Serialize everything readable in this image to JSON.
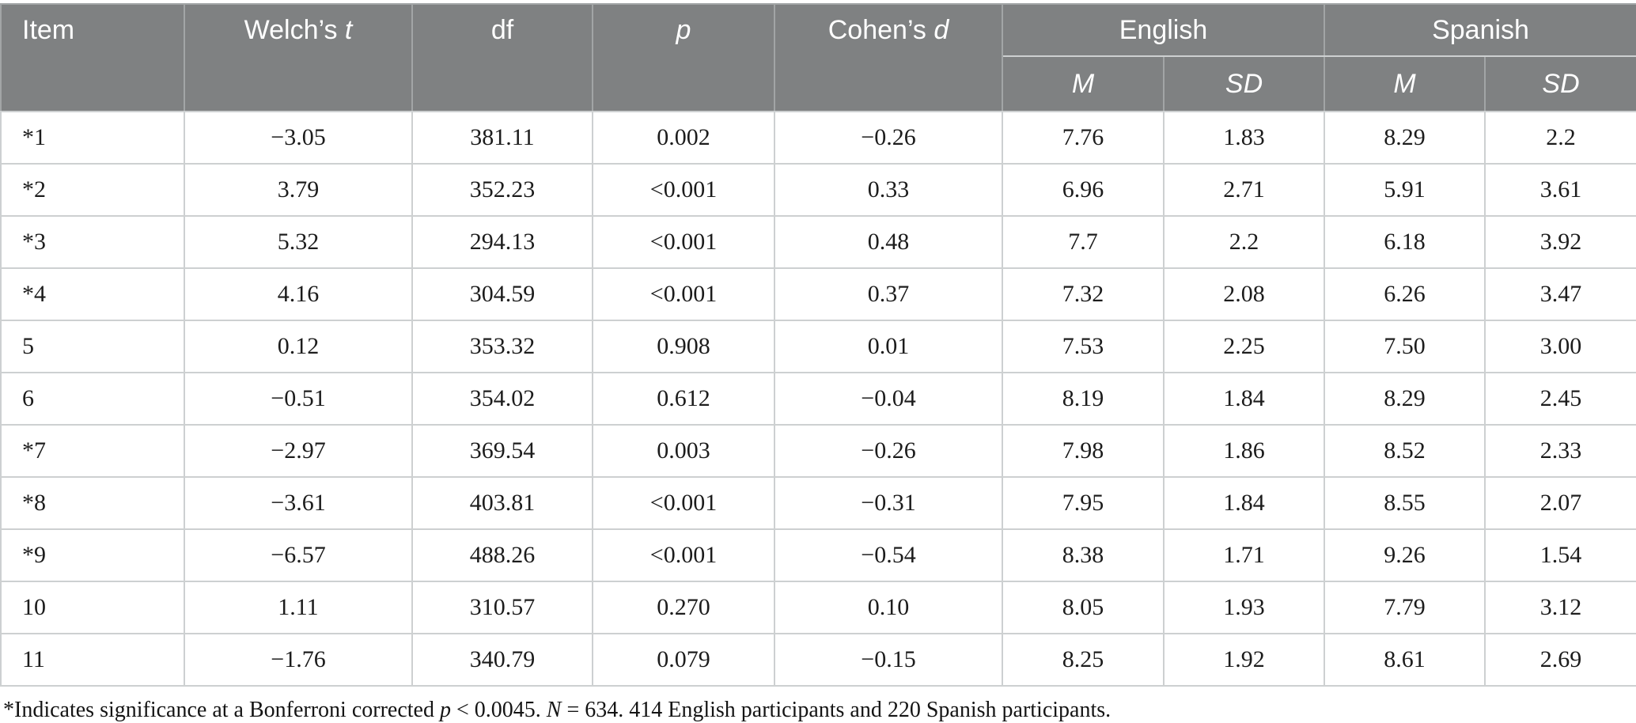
{
  "table": {
    "header": {
      "item": "Item",
      "welch_plain": "Welch’s ",
      "welch_italic": "t",
      "df": "df",
      "p_italic": "p",
      "cohen_plain": "Cohen’s ",
      "cohen_italic": "d",
      "group_english": "English",
      "group_spanish": "Spanish",
      "m_label": "M",
      "sd_label": "SD"
    },
    "rows": [
      [
        "*1",
        "−3.05",
        "381.11",
        "0.002",
        "−0.26",
        "7.76",
        "1.83",
        "8.29",
        "2.2"
      ],
      [
        "*2",
        "3.79",
        "352.23",
        "<0.001",
        "0.33",
        "6.96",
        "2.71",
        "5.91",
        "3.61"
      ],
      [
        "*3",
        "5.32",
        "294.13",
        "<0.001",
        "0.48",
        "7.7",
        "2.2",
        "6.18",
        "3.92"
      ],
      [
        "*4",
        "4.16",
        "304.59",
        "<0.001",
        "0.37",
        "7.32",
        "2.08",
        "6.26",
        "3.47"
      ],
      [
        "5",
        "0.12",
        "353.32",
        "0.908",
        "0.01",
        "7.53",
        "2.25",
        "7.50",
        "3.00"
      ],
      [
        "6",
        "−0.51",
        "354.02",
        "0.612",
        "−0.04",
        "8.19",
        "1.84",
        "8.29",
        "2.45"
      ],
      [
        "*7",
        "−2.97",
        "369.54",
        "0.003",
        "−0.26",
        "7.98",
        "1.86",
        "8.52",
        "2.33"
      ],
      [
        "*8",
        "−3.61",
        "403.81",
        "<0.001",
        "−0.31",
        "7.95",
        "1.84",
        "8.55",
        "2.07"
      ],
      [
        "*9",
        "−6.57",
        "488.26",
        "<0.001",
        "−0.54",
        "8.38",
        "1.71",
        "9.26",
        "1.54"
      ],
      [
        "10",
        "1.11",
        "310.57",
        "0.270",
        "0.10",
        "8.05",
        "1.93",
        "7.79",
        "3.12"
      ],
      [
        "11",
        "−1.76",
        "340.79",
        "0.079",
        "−0.15",
        "8.25",
        "1.92",
        "8.61",
        "2.69"
      ]
    ]
  },
  "footnote": {
    "part1": "*Indicates significance at a Bonferroni corrected ",
    "p": "p",
    "part2": " < 0.0045. ",
    "n": "N",
    "part3": " = 634. 414 English participants and 220 Spanish participants."
  },
  "colors": {
    "header_bg": "#7f8182",
    "header_text": "#ffffff",
    "body_text": "#1c1c1c",
    "body_border": "#cdd0d1",
    "header_border": "#a2a5a6"
  }
}
